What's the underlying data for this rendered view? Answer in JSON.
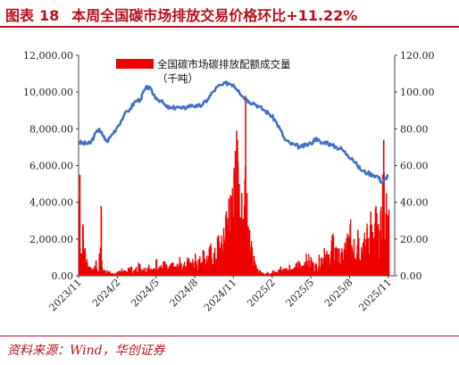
{
  "header": {
    "figure_label": "图表",
    "figure_number": "18",
    "title": "本周全国碳市场排放交易价格环比+11.22%"
  },
  "source": "资料来源：Wind，华创证券",
  "colors": {
    "bar": "#ee0000",
    "line": "#4472c4",
    "title": "#b5121b"
  },
  "chart_data": {
    "type": "bar+line",
    "title": "本周全国碳市场排放交易价格环比+11.22%",
    "legend": [
      {
        "name": "全国碳市场碳排放配额成交量",
        "sub": "（千吨）",
        "type": "bar",
        "color": "#ee0000"
      }
    ],
    "left_axis": {
      "min": 0,
      "max": 12000,
      "ticks": [
        "0.00",
        "2,000.00",
        "4,000.00",
        "6,000.00",
        "8,000.00",
        "10,000.00",
        "12,000.00"
      ]
    },
    "right_axis": {
      "min": 0,
      "max": 120,
      "ticks": [
        "0.00",
        "20.00",
        "40.00",
        "60.00",
        "80.00",
        "100.00",
        "120.00"
      ]
    },
    "x_range": [
      0,
      24.5
    ],
    "x_ticks": [
      {
        "label": "2023/11",
        "x": 0
      },
      {
        "label": "2024/2",
        "x": 3
      },
      {
        "label": "2024/5",
        "x": 6
      },
      {
        "label": "2024/8",
        "x": 9
      },
      {
        "label": "2024/11",
        "x": 12
      },
      {
        "label": "2025/2",
        "x": 15
      },
      {
        "label": "2025/5",
        "x": 18
      },
      {
        "label": "2025/8",
        "x": 21
      },
      {
        "label": "2025/11",
        "x": 24
      }
    ],
    "bars_keypoints": [
      [
        0.05,
        5500
      ],
      [
        0.15,
        1200
      ],
      [
        0.3,
        2800
      ],
      [
        0.45,
        1500
      ],
      [
        0.6,
        900
      ],
      [
        0.8,
        500
      ],
      [
        1.0,
        300
      ],
      [
        1.3,
        800
      ],
      [
        1.5,
        200
      ],
      [
        1.7,
        3800
      ],
      [
        1.8,
        400
      ],
      [
        2.2,
        300
      ],
      [
        2.6,
        150
      ],
      [
        3.0,
        200
      ],
      [
        3.3,
        400
      ],
      [
        3.6,
        250
      ],
      [
        4.0,
        500
      ],
      [
        4.3,
        300
      ],
      [
        4.6,
        700
      ],
      [
        5.0,
        400
      ],
      [
        5.4,
        600
      ],
      [
        5.7,
        300
      ],
      [
        6.0,
        900
      ],
      [
        6.3,
        500
      ],
      [
        6.6,
        800
      ],
      [
        6.9,
        400
      ],
      [
        7.2,
        700
      ],
      [
        7.5,
        500
      ],
      [
        7.8,
        900
      ],
      [
        8.1,
        600
      ],
      [
        8.4,
        1000
      ],
      [
        8.7,
        700
      ],
      [
        9.0,
        1200
      ],
      [
        9.3,
        900
      ],
      [
        9.6,
        1400
      ],
      [
        9.9,
        1100
      ],
      [
        10.2,
        1600
      ],
      [
        10.5,
        1300
      ],
      [
        10.8,
        2200
      ],
      [
        11.0,
        1800
      ],
      [
        11.2,
        2600
      ],
      [
        11.4,
        3500
      ],
      [
        11.6,
        4200
      ],
      [
        11.8,
        4000
      ],
      [
        12.0,
        5600
      ],
      [
        12.1,
        6800
      ],
      [
        12.2,
        7900
      ],
      [
        12.3,
        6200
      ],
      [
        12.4,
        5000
      ],
      [
        12.6,
        4500
      ],
      [
        12.8,
        3800
      ],
      [
        12.9,
        9800
      ],
      [
        13.0,
        4500
      ],
      [
        13.2,
        2500
      ],
      [
        13.4,
        1500
      ],
      [
        13.6,
        800
      ],
      [
        13.8,
        400
      ],
      [
        14.0,
        300
      ],
      [
        14.3,
        150
      ],
      [
        14.6,
        200
      ],
      [
        15.0,
        300
      ],
      [
        15.3,
        200
      ],
      [
        15.6,
        500
      ],
      [
        16.0,
        400
      ],
      [
        16.3,
        600
      ],
      [
        16.6,
        400
      ],
      [
        17.0,
        800
      ],
      [
        17.3,
        500
      ],
      [
        17.6,
        1200
      ],
      [
        18.0,
        900
      ],
      [
        18.3,
        600
      ],
      [
        18.6,
        1000
      ],
      [
        19.0,
        1500
      ],
      [
        19.3,
        1100
      ],
      [
        19.6,
        2200
      ],
      [
        20.0,
        1500
      ],
      [
        20.3,
        1200
      ],
      [
        20.6,
        1800
      ],
      [
        21.0,
        2800
      ],
      [
        21.3,
        2000
      ],
      [
        21.6,
        2500
      ],
      [
        22.0,
        1800
      ],
      [
        22.3,
        2600
      ],
      [
        22.6,
        3500
      ],
      [
        22.8,
        2000
      ],
      [
        23.0,
        3800
      ],
      [
        23.2,
        2500
      ],
      [
        23.4,
        3300
      ],
      [
        23.6,
        7400
      ],
      [
        23.7,
        2000
      ],
      [
        23.8,
        4500
      ],
      [
        23.9,
        3000
      ],
      [
        24.0,
        3600
      ]
    ],
    "price_line": [
      [
        0,
        73
      ],
      [
        0.3,
        72
      ],
      [
        0.6,
        72
      ],
      [
        0.9,
        72
      ],
      [
        1.2,
        76
      ],
      [
        1.6,
        80
      ],
      [
        1.9,
        76
      ],
      [
        2.2,
        73
      ],
      [
        2.6,
        77
      ],
      [
        3.0,
        81
      ],
      [
        3.5,
        87
      ],
      [
        4.0,
        91
      ],
      [
        4.4,
        95
      ],
      [
        4.8,
        96
      ],
      [
        5.1,
        101
      ],
      [
        5.4,
        103
      ],
      [
        5.7,
        100
      ],
      [
        6.0,
        97
      ],
      [
        6.4,
        95
      ],
      [
        6.8,
        92
      ],
      [
        7.2,
        91
      ],
      [
        7.6,
        92
      ],
      [
        8.0,
        91
      ],
      [
        8.4,
        92
      ],
      [
        8.8,
        93
      ],
      [
        9.2,
        92
      ],
      [
        9.6,
        93
      ],
      [
        10.0,
        96
      ],
      [
        10.4,
        100
      ],
      [
        10.8,
        103
      ],
      [
        11.2,
        104
      ],
      [
        11.6,
        105
      ],
      [
        12.0,
        104
      ],
      [
        12.4,
        101
      ],
      [
        12.8,
        97
      ],
      [
        13.2,
        95
      ],
      [
        13.6,
        94
      ],
      [
        14.0,
        92
      ],
      [
        14.4,
        90
      ],
      [
        14.8,
        88
      ],
      [
        15.2,
        85
      ],
      [
        15.6,
        80
      ],
      [
        16.0,
        74
      ],
      [
        16.4,
        72
      ],
      [
        16.8,
        71
      ],
      [
        17.2,
        70
      ],
      [
        17.6,
        71
      ],
      [
        18.0,
        72
      ],
      [
        18.4,
        75
      ],
      [
        18.8,
        72
      ],
      [
        19.2,
        73
      ],
      [
        19.6,
        71
      ],
      [
        20.0,
        70
      ],
      [
        20.4,
        69
      ],
      [
        20.8,
        66
      ],
      [
        21.2,
        64
      ],
      [
        21.6,
        60
      ],
      [
        22.0,
        57
      ],
      [
        22.4,
        56
      ],
      [
        22.8,
        55
      ],
      [
        23.2,
        54
      ],
      [
        23.5,
        51
      ],
      [
        23.7,
        52
      ],
      [
        24.0,
        55
      ]
    ]
  }
}
